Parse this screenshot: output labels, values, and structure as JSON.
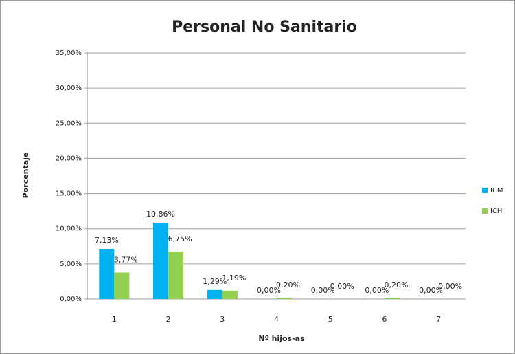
{
  "chart_data": {
    "type": "bar",
    "title": "Personal No Sanitario",
    "x_label": "Nº hijos-as",
    "y_label": "Porcentaje",
    "categories": [
      "1",
      "2",
      "3",
      "4",
      "5",
      "6",
      "7"
    ],
    "series": [
      {
        "name": "ICM",
        "color": "#00b0f0",
        "values": [
          7.13,
          10.86,
          1.29,
          0,
          0,
          0,
          0
        ],
        "value_labels": [
          "7,13%",
          "10,86%",
          "1,29%",
          "0,00%",
          "0,00%",
          "0,00%",
          "0,00%"
        ]
      },
      {
        "name": "ICH",
        "color": "#92d050",
        "values": [
          3.77,
          6.75,
          1.19,
          0.2,
          0,
          0.2,
          0
        ],
        "value_labels": [
          "3,77%",
          "6,75%",
          "1,19%",
          "0,20%",
          "0,00%",
          "0,20%",
          "0,00%"
        ]
      }
    ],
    "ylim": [
      0,
      35
    ],
    "yticks": [
      {
        "value": 0,
        "label": "0,00%"
      },
      {
        "value": 5,
        "label": "5,00%"
      },
      {
        "value": 10,
        "label": "10,00%"
      },
      {
        "value": 15,
        "label": "15,00%"
      },
      {
        "value": 20,
        "label": "20,00%"
      },
      {
        "value": 25,
        "label": "25,00%"
      },
      {
        "value": 30,
        "label": "30,00%"
      },
      {
        "value": 35,
        "label": "35,00%"
      }
    ],
    "grid": true,
    "legend": "right"
  }
}
